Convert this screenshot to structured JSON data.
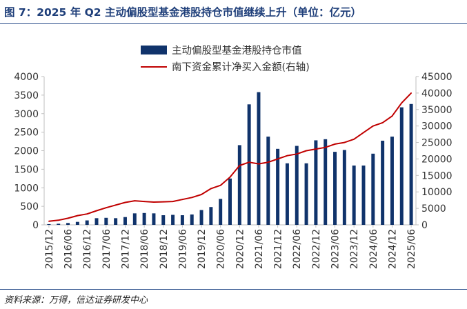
{
  "figure": {
    "title": "图 7：2025 年 Q2 主动偏股型基金港股持仓市值继续上升（单位：亿元）",
    "source": "资料来源：万得，信达证券研发中心"
  },
  "colors": {
    "bar": "#10336b",
    "line": "#c00000",
    "axis": "#bfbfbf",
    "text": "#333333",
    "title": "#1f3f7a"
  },
  "chart_data": {
    "type": "bar",
    "categories": [
      "2015/12",
      "2016/03",
      "2016/06",
      "2016/09",
      "2016/12",
      "2017/03",
      "2017/06",
      "2017/09",
      "2017/12",
      "2018/03",
      "2018/06",
      "2018/09",
      "2018/12",
      "2019/03",
      "2019/06",
      "2019/09",
      "2019/12",
      "2020/03",
      "2020/06",
      "2020/09",
      "2020/12",
      "2021/03",
      "2021/06",
      "2021/09",
      "2021/12",
      "2022/03",
      "2022/06",
      "2022/09",
      "2022/12",
      "2023/03",
      "2023/06",
      "2023/09",
      "2023/12",
      "2024/03",
      "2024/06",
      "2024/09",
      "2024/12",
      "2025/03",
      "2025/06"
    ],
    "x_tick_labels": [
      "2015/12",
      "2016/06",
      "2016/12",
      "2017/06",
      "2017/12",
      "2018/06",
      "2018/12",
      "2019/06",
      "2019/12",
      "2020/06",
      "2020/12",
      "2021/06",
      "2021/12",
      "2022/06",
      "2022/12",
      "2023/06",
      "2023/12",
      "2024/06",
      "2024/12",
      "2025/06"
    ],
    "series": [
      {
        "name": "主动偏股型基金港股持仓市值",
        "type": "bar",
        "axis": "left",
        "values": [
          20,
          30,
          50,
          80,
          120,
          180,
          190,
          180,
          210,
          310,
          320,
          310,
          260,
          270,
          260,
          280,
          400,
          480,
          700,
          1250,
          2150,
          3250,
          3580,
          2380,
          2050,
          1660,
          2130,
          1660,
          2280,
          2310,
          1970,
          2020,
          1600,
          1600,
          1920,
          2270,
          2380,
          3170,
          3260
        ]
      },
      {
        "name": "南下资金累计净买入金额(右轴)",
        "type": "line",
        "axis": "right",
        "values": [
          1100,
          1400,
          2000,
          2800,
          3300,
          4300,
          5200,
          6000,
          6800,
          7300,
          7100,
          6900,
          7000,
          7100,
          7700,
          8300,
          9200,
          11000,
          12000,
          14500,
          18000,
          19000,
          18500,
          19000,
          20000,
          21000,
          21500,
          22500,
          23000,
          23500,
          24500,
          25000,
          26000,
          28000,
          30000,
          31000,
          33000,
          37000,
          40000
        ]
      }
    ],
    "y_left": {
      "lim": [
        0,
        4000
      ],
      "ticks": [
        0,
        500,
        1000,
        1500,
        2000,
        2500,
        3000,
        3500,
        4000
      ]
    },
    "y_right": {
      "lim": [
        0,
        45000
      ],
      "ticks": [
        0,
        5000,
        10000,
        15000,
        20000,
        25000,
        30000,
        35000,
        40000,
        45000
      ]
    },
    "legend_position": "top-center",
    "grid": false
  }
}
